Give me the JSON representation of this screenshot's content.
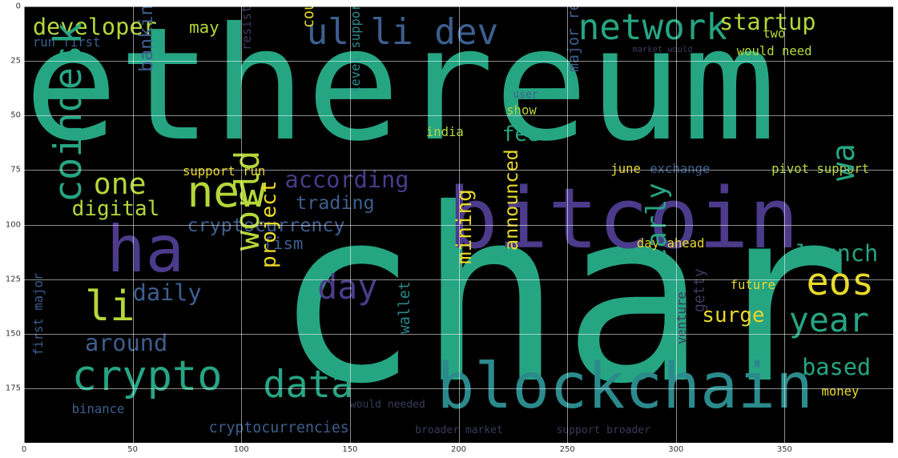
{
  "chart_data": {
    "type": "wordcloud",
    "title": "",
    "xlabel": "",
    "ylabel": "",
    "xlim": [
      0,
      400
    ],
    "ylim": [
      200,
      0
    ],
    "grid": true,
    "x_ticks": [
      "0",
      "50",
      "100",
      "150",
      "200",
      "250",
      "300",
      "350"
    ],
    "y_ticks": [
      "0",
      "25",
      "50",
      "75",
      "100",
      "125",
      "150",
      "175"
    ],
    "x_tick_values": [
      0,
      50,
      100,
      150,
      200,
      250,
      300,
      350
    ],
    "y_tick_values": [
      0,
      25,
      50,
      75,
      100,
      125,
      150,
      175
    ],
    "colors": {
      "teal": "#26a583",
      "purple": "#4b3b8a",
      "lime": "#b5d73a",
      "yellow": "#e8d92a",
      "blue": "#3d5f8f",
      "cyan": "#2b8a8c",
      "green": "#5dbc5a",
      "dark": "#3a3a5c"
    },
    "words": [
      {
        "text": "ethereum",
        "x": 0,
        "y": 0,
        "size": 150,
        "color": "teal"
      },
      {
        "text": "char",
        "x": 115,
        "y": 78,
        "size": 230,
        "color": "teal"
      },
      {
        "text": "bitcoin",
        "x": 195,
        "y": 78,
        "size": 80,
        "color": "purple"
      },
      {
        "text": "blockchain",
        "x": 190,
        "y": 160,
        "size": 60,
        "color": "cyan"
      },
      {
        "text": "network",
        "x": 255,
        "y": 2,
        "size": 34,
        "color": "teal"
      },
      {
        "text": "startup",
        "x": 320,
        "y": 2,
        "size": 22,
        "color": "lime"
      },
      {
        "text": "ul li dev",
        "x": 130,
        "y": 4,
        "size": 34,
        "color": "blue"
      },
      {
        "text": "developer",
        "x": 4,
        "y": 4,
        "size": 22,
        "color": "lime"
      },
      {
        "text": "may",
        "x": 76,
        "y": 6,
        "size": 16,
        "color": "lime"
      },
      {
        "text": "run first",
        "x": 4,
        "y": 14,
        "size": 12,
        "color": "blue"
      },
      {
        "text": "new",
        "x": 75,
        "y": 75,
        "size": 42,
        "color": "lime"
      },
      {
        "text": "one",
        "x": 32,
        "y": 75,
        "size": 28,
        "color": "lime"
      },
      {
        "text": "digital",
        "x": 22,
        "y": 88,
        "size": 20,
        "color": "lime"
      },
      {
        "text": "ha",
        "x": 38,
        "y": 97,
        "size": 62,
        "color": "purple"
      },
      {
        "text": "li",
        "x": 28,
        "y": 128,
        "size": 40,
        "color": "lime"
      },
      {
        "text": "around",
        "x": 28,
        "y": 149,
        "size": 22,
        "color": "blue"
      },
      {
        "text": "crypto",
        "x": 22,
        "y": 160,
        "size": 40,
        "color": "teal"
      },
      {
        "text": "binance",
        "x": 22,
        "y": 182,
        "size": 12,
        "color": "blue"
      },
      {
        "text": "daily",
        "x": 50,
        "y": 126,
        "size": 22,
        "color": "blue"
      },
      {
        "text": "data",
        "x": 110,
        "y": 165,
        "size": 36,
        "color": "teal"
      },
      {
        "text": "day",
        "x": 135,
        "y": 121,
        "size": 32,
        "color": "purple"
      },
      {
        "text": "according",
        "x": 120,
        "y": 74,
        "size": 22,
        "color": "purple"
      },
      {
        "text": "trading",
        "x": 125,
        "y": 86,
        "size": 18,
        "color": "blue"
      },
      {
        "text": "cryptocurrency",
        "x": 75,
        "y": 96,
        "size": 18,
        "color": "blue"
      },
      {
        "text": "fism",
        "x": 110,
        "y": 105,
        "size": 16,
        "color": "blue"
      },
      {
        "text": "fee",
        "x": 220,
        "y": 54,
        "size": 20,
        "color": "teal"
      },
      {
        "text": "launch",
        "x": 355,
        "y": 108,
        "size": 22,
        "color": "teal"
      },
      {
        "text": "eos",
        "x": 360,
        "y": 118,
        "size": 36,
        "color": "yellow"
      },
      {
        "text": "year",
        "x": 352,
        "y": 136,
        "size": 32,
        "color": "teal"
      },
      {
        "text": "based",
        "x": 358,
        "y": 160,
        "size": 22,
        "color": "teal"
      },
      {
        "text": "surge",
        "x": 312,
        "y": 137,
        "size": 20,
        "color": "yellow"
      },
      {
        "text": "future",
        "x": 325,
        "y": 125,
        "size": 12,
        "color": "yellow"
      },
      {
        "text": "day ahead",
        "x": 282,
        "y": 106,
        "size": 12,
        "color": "yellow"
      },
      {
        "text": "exchange",
        "x": 288,
        "y": 72,
        "size": 12,
        "color": "blue"
      },
      {
        "text": "pivot support",
        "x": 344,
        "y": 72,
        "size": 12,
        "color": "lime"
      },
      {
        "text": "june",
        "x": 270,
        "y": 72,
        "size": 12,
        "color": "yellow"
      },
      {
        "text": "support run",
        "x": 73,
        "y": 73,
        "size": 12,
        "color": "yellow"
      },
      {
        "text": "india",
        "x": 185,
        "y": 55,
        "size": 12,
        "color": "lime"
      },
      {
        "text": "show",
        "x": 222,
        "y": 45,
        "size": 12,
        "color": "lime"
      },
      {
        "text": "money",
        "x": 367,
        "y": 174,
        "size": 12,
        "color": "yellow"
      },
      {
        "text": "would need",
        "x": 328,
        "y": 18,
        "size": 12,
        "color": "lime"
      },
      {
        "text": "cryptocurrencies",
        "x": 85,
        "y": 190,
        "size": 14,
        "color": "blue"
      },
      {
        "text": "broader market",
        "x": 180,
        "y": 192,
        "size": 10,
        "color": "dark"
      },
      {
        "text": "support broader",
        "x": 245,
        "y": 192,
        "size": 10,
        "color": "dark"
      },
      {
        "text": "would needed",
        "x": 150,
        "y": 180,
        "size": 10,
        "color": "dark"
      },
      {
        "text": "market would",
        "x": 280,
        "y": 18,
        "size": 8,
        "color": "dark"
      },
      {
        "text": "two",
        "x": 340,
        "y": 10,
        "size": 12,
        "color": "lime"
      },
      {
        "text": "user",
        "x": 225,
        "y": 38,
        "size": 10,
        "color": "blue"
      }
    ],
    "vertical_words": [
      {
        "text": "coindesk",
        "x": 12,
        "y": 90,
        "size": 36,
        "color": "teal"
      },
      {
        "text": "world",
        "x": 95,
        "y": 112,
        "size": 32,
        "color": "lime"
      },
      {
        "text": "project",
        "x": 108,
        "y": 120,
        "size": 20,
        "color": "yellow"
      },
      {
        "text": "banking",
        "x": 52,
        "y": 30,
        "size": 18,
        "color": "blue"
      },
      {
        "text": "mining",
        "x": 198,
        "y": 118,
        "size": 20,
        "color": "yellow"
      },
      {
        "text": "announced",
        "x": 220,
        "y": 112,
        "size": 18,
        "color": "yellow"
      },
      {
        "text": "early",
        "x": 285,
        "y": 118,
        "size": 26,
        "color": "teal"
      },
      {
        "text": "getty",
        "x": 308,
        "y": 140,
        "size": 14,
        "color": "dark"
      },
      {
        "text": "wallet",
        "x": 172,
        "y": 150,
        "size": 14,
        "color": "cyan"
      },
      {
        "text": "court",
        "x": 128,
        "y": 10,
        "size": 14,
        "color": "yellow"
      },
      {
        "text": "major resistance",
        "x": 250,
        "y": 30,
        "size": 14,
        "color": "blue"
      },
      {
        "text": "level support",
        "x": 150,
        "y": 40,
        "size": 12,
        "color": "cyan"
      },
      {
        "text": "first major",
        "x": 4,
        "y": 160,
        "size": 12,
        "color": "blue"
      },
      {
        "text": "resistance level",
        "x": 100,
        "y": 20,
        "size": 12,
        "color": "dark"
      },
      {
        "text": "venture",
        "x": 300,
        "y": 155,
        "size": 12,
        "color": "dark"
      },
      {
        "text": "wa",
        "x": 370,
        "y": 80,
        "size": 30,
        "color": "teal"
      }
    ]
  }
}
